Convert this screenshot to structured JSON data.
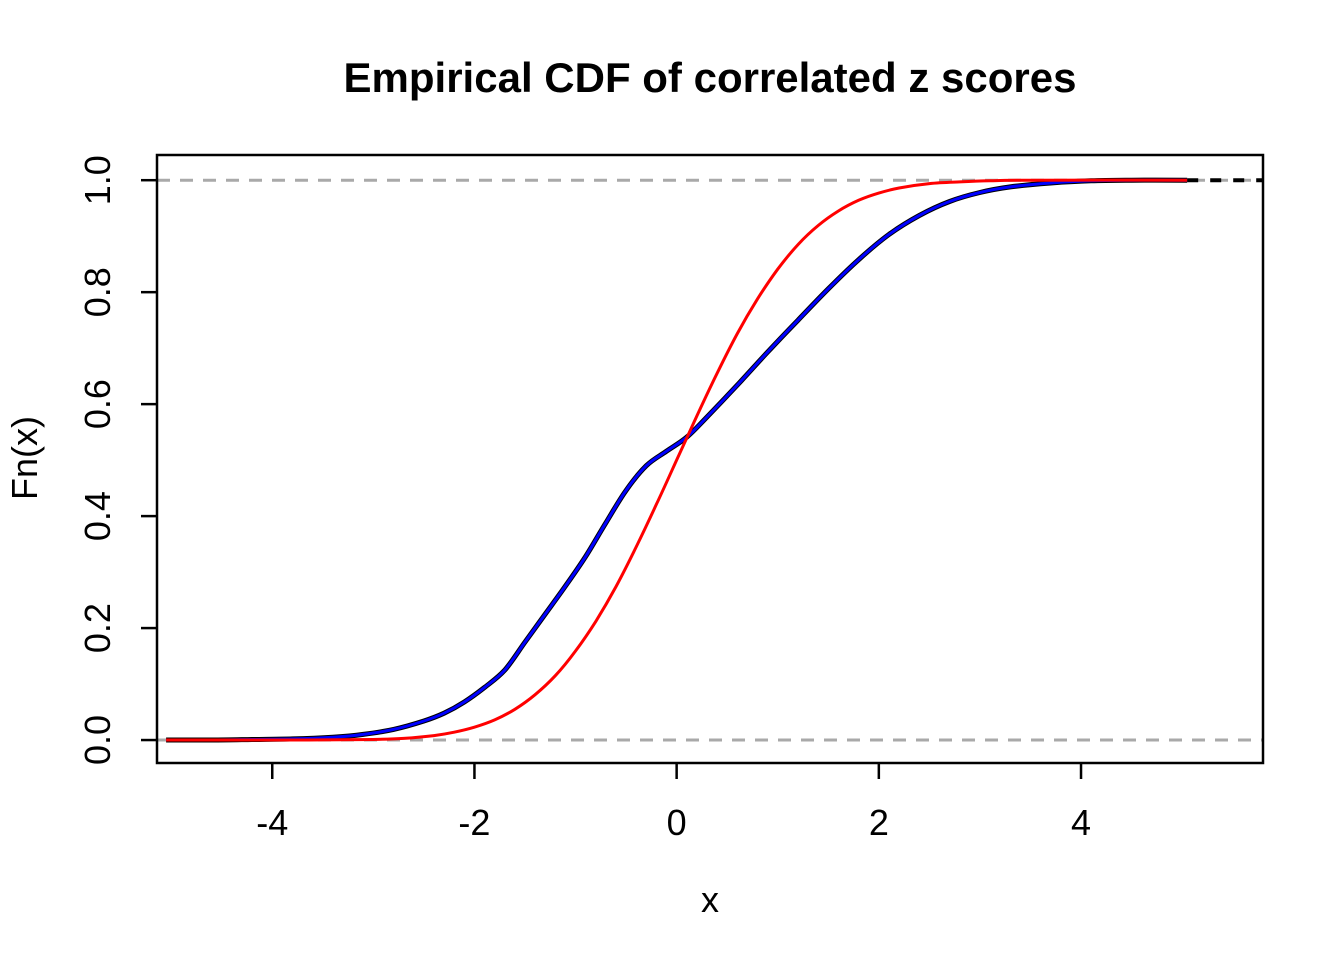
{
  "figure": {
    "background": "#FFFFFF",
    "frame_color": "#000000"
  },
  "chart_data": {
    "type": "line",
    "title": "Empirical CDF of correlated z scores",
    "xlabel": "x",
    "ylabel": "Fn(x)",
    "xlim": [
      -5.14,
      5.8
    ],
    "ylim": [
      -0.041,
      1.045
    ],
    "grid": false,
    "legend": "none",
    "x_ticks": {
      "values": [
        -4,
        -2,
        0,
        2,
        4
      ],
      "labels": [
        "-4",
        "-2",
        "0",
        "2",
        "4"
      ]
    },
    "y_ticks": {
      "values": [
        0,
        0.2,
        0.4,
        0.6,
        0.8,
        1.0
      ],
      "labels": [
        "0.0",
        "0.2",
        "0.4",
        "0.6",
        "0.8",
        "1.0"
      ]
    },
    "reference_lines": [
      {
        "name": "dashed-line-y0",
        "y": 0,
        "color": "#A9A9A9",
        "width": 3,
        "dash": [
          13,
          10
        ]
      },
      {
        "name": "dashed-line-y1",
        "y": 1,
        "color": "#A9A9A9",
        "width": 3,
        "dash": [
          13,
          10
        ]
      }
    ],
    "series": [
      {
        "name": "empirical-cdf-black",
        "color": "#000000",
        "width": 5,
        "dash": null,
        "points": [
          [
            -5.05,
            0
          ],
          [
            -4.6,
            0
          ],
          [
            -4.2,
            0.001
          ],
          [
            -3.8,
            0.002
          ],
          [
            -3.4,
            0.005
          ],
          [
            -3.1,
            0.01
          ],
          [
            -2.8,
            0.019
          ],
          [
            -2.5,
            0.034
          ],
          [
            -2.3,
            0.048
          ],
          [
            -2.1,
            0.068
          ],
          [
            -1.9,
            0.094
          ],
          [
            -1.7,
            0.125
          ],
          [
            -1.5,
            0.175
          ],
          [
            -1.3,
            0.225
          ],
          [
            -1.1,
            0.275
          ],
          [
            -0.9,
            0.328
          ],
          [
            -0.7,
            0.388
          ],
          [
            -0.5,
            0.446
          ],
          [
            -0.3,
            0.49
          ],
          [
            -0.1,
            0.516
          ],
          [
            0.1,
            0.541
          ],
          [
            0.3,
            0.577
          ],
          [
            0.6,
            0.634
          ],
          [
            0.9,
            0.693
          ],
          [
            1.2,
            0.75
          ],
          [
            1.5,
            0.806
          ],
          [
            1.8,
            0.858
          ],
          [
            2.1,
            0.903
          ],
          [
            2.4,
            0.937
          ],
          [
            2.7,
            0.962
          ],
          [
            3.0,
            0.978
          ],
          [
            3.3,
            0.988
          ],
          [
            3.7,
            0.995
          ],
          [
            4.1,
            0.999
          ],
          [
            4.5,
            1.0
          ],
          [
            5.05,
            1.0
          ]
        ]
      },
      {
        "name": "empirical-cdf-blue",
        "color": "#0000FF",
        "width": 3,
        "dash": null,
        "points": [
          [
            -5.05,
            0
          ],
          [
            -4.6,
            0
          ],
          [
            -4.2,
            0.001
          ],
          [
            -3.8,
            0.002
          ],
          [
            -3.4,
            0.005
          ],
          [
            -3.1,
            0.01
          ],
          [
            -2.8,
            0.019
          ],
          [
            -2.5,
            0.034
          ],
          [
            -2.3,
            0.048
          ],
          [
            -2.1,
            0.068
          ],
          [
            -1.9,
            0.094
          ],
          [
            -1.7,
            0.125
          ],
          [
            -1.5,
            0.175
          ],
          [
            -1.3,
            0.225
          ],
          [
            -1.1,
            0.275
          ],
          [
            -0.9,
            0.328
          ],
          [
            -0.7,
            0.388
          ],
          [
            -0.5,
            0.446
          ],
          [
            -0.3,
            0.49
          ],
          [
            -0.1,
            0.516
          ],
          [
            0.1,
            0.541
          ],
          [
            0.3,
            0.577
          ],
          [
            0.6,
            0.634
          ],
          [
            0.9,
            0.693
          ],
          [
            1.2,
            0.75
          ],
          [
            1.5,
            0.806
          ],
          [
            1.8,
            0.858
          ],
          [
            2.1,
            0.903
          ],
          [
            2.4,
            0.937
          ],
          [
            2.7,
            0.962
          ],
          [
            3.0,
            0.978
          ],
          [
            3.3,
            0.988
          ],
          [
            3.7,
            0.995
          ],
          [
            4.1,
            0.999
          ],
          [
            4.5,
            1.0
          ],
          [
            5.05,
            1.0
          ]
        ]
      },
      {
        "name": "normal-cdf-red",
        "color": "#FF0000",
        "width": 3,
        "dash": null,
        "points": [
          [
            -5.05,
            0
          ],
          [
            -4.0,
            0
          ],
          [
            -3.5,
            0.0002
          ],
          [
            -3.0,
            0.001
          ],
          [
            -2.7,
            0.003
          ],
          [
            -2.4,
            0.008
          ],
          [
            -2.2,
            0.014
          ],
          [
            -2.0,
            0.023
          ],
          [
            -1.8,
            0.036
          ],
          [
            -1.6,
            0.055
          ],
          [
            -1.4,
            0.081
          ],
          [
            -1.2,
            0.115
          ],
          [
            -1.0,
            0.159
          ],
          [
            -0.8,
            0.212
          ],
          [
            -0.6,
            0.274
          ],
          [
            -0.4,
            0.345
          ],
          [
            -0.2,
            0.421
          ],
          [
            0,
            0.5
          ],
          [
            0.2,
            0.579
          ],
          [
            0.4,
            0.655
          ],
          [
            0.6,
            0.726
          ],
          [
            0.8,
            0.788
          ],
          [
            1.0,
            0.841
          ],
          [
            1.2,
            0.885
          ],
          [
            1.4,
            0.919
          ],
          [
            1.6,
            0.945
          ],
          [
            1.8,
            0.964
          ],
          [
            2.0,
            0.977
          ],
          [
            2.2,
            0.986
          ],
          [
            2.5,
            0.994
          ],
          [
            2.8,
            0.997
          ],
          [
            3.1,
            0.999
          ],
          [
            3.5,
            1.0
          ],
          [
            5.05,
            1.0
          ]
        ]
      },
      {
        "name": "ecdf-tail-dashed-black",
        "color": "#000000",
        "width": 4,
        "dash": [
          11,
          12
        ],
        "points": [
          [
            5.05,
            1
          ],
          [
            5.8,
            1
          ]
        ]
      }
    ]
  }
}
